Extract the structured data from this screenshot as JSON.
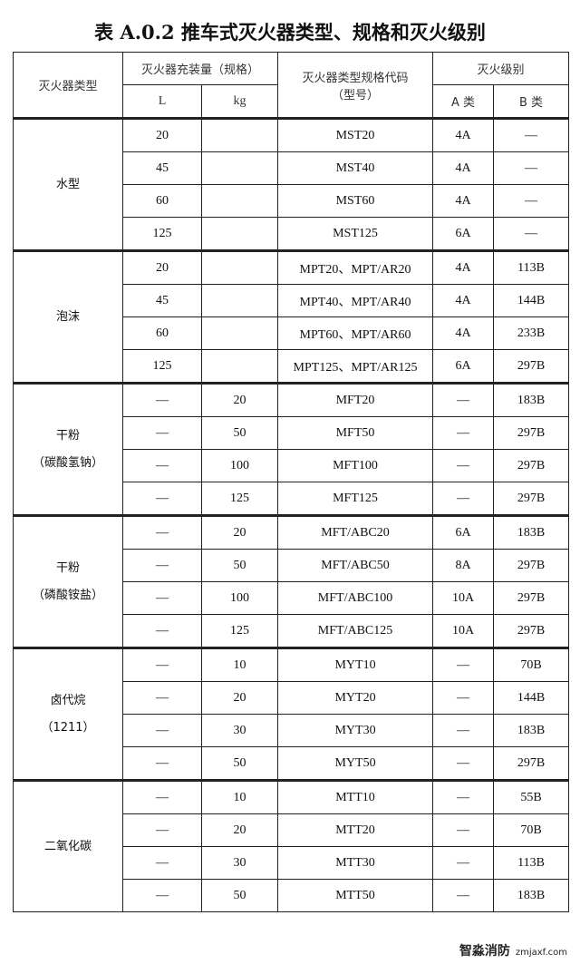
{
  "title": "表 A.0.2  推车式灭火器类型、规格和灭火级别",
  "headers": {
    "type": "灭火器类型",
    "capacity": "灭火器充装量（规格）",
    "L": "L",
    "kg": "kg",
    "code": "灭火器类型规格代码（型号）",
    "rating": "灭火级别",
    "A": "A 类",
    "B": "B 类"
  },
  "groups": [
    {
      "type": [
        "水型"
      ],
      "rows": [
        [
          "20",
          "",
          "MST20",
          "4A",
          "—"
        ],
        [
          "45",
          "",
          "MST40",
          "4A",
          "—"
        ],
        [
          "60",
          "",
          "MST60",
          "4A",
          "—"
        ],
        [
          "125",
          "",
          "MST125",
          "6A",
          "—"
        ]
      ]
    },
    {
      "type": [
        "泡沫"
      ],
      "rows": [
        [
          "20",
          "",
          "MPT20、MPT/AR20",
          "4A",
          "113B"
        ],
        [
          "45",
          "",
          "MPT40、MPT/AR40",
          "4A",
          "144B"
        ],
        [
          "60",
          "",
          "MPT60、MPT/AR60",
          "4A",
          "233B"
        ],
        [
          "125",
          "",
          "MPT125、MPT/AR125",
          "6A",
          "297B"
        ]
      ]
    },
    {
      "type": [
        "干粉",
        "（碳酸氢钠）"
      ],
      "rows": [
        [
          "—",
          "20",
          "MFT20",
          "—",
          "183B"
        ],
        [
          "—",
          "50",
          "MFT50",
          "—",
          "297B"
        ],
        [
          "—",
          "100",
          "MFT100",
          "—",
          "297B"
        ],
        [
          "—",
          "125",
          "MFT125",
          "—",
          "297B"
        ]
      ]
    },
    {
      "type": [
        "干粉",
        "（磷酸铵盐）"
      ],
      "rows": [
        [
          "—",
          "20",
          "MFT/ABC20",
          "6A",
          "183B"
        ],
        [
          "—",
          "50",
          "MFT/ABC50",
          "8A",
          "297B"
        ],
        [
          "—",
          "100",
          "MFT/ABC100",
          "10A",
          "297B"
        ],
        [
          "—",
          "125",
          "MFT/ABC125",
          "10A",
          "297B"
        ]
      ]
    },
    {
      "type": [
        "卤代烷",
        "（1211）"
      ],
      "rows": [
        [
          "—",
          "10",
          "MYT10",
          "—",
          "70B"
        ],
        [
          "—",
          "20",
          "MYT20",
          "—",
          "144B"
        ],
        [
          "—",
          "30",
          "MYT30",
          "—",
          "183B"
        ],
        [
          "—",
          "50",
          "MYT50",
          "—",
          "297B"
        ]
      ]
    },
    {
      "type": [
        "二氧化碳"
      ],
      "rows": [
        [
          "—",
          "10",
          "MTT10",
          "—",
          "55B"
        ],
        [
          "—",
          "20",
          "MTT20",
          "—",
          "70B"
        ],
        [
          "—",
          "30",
          "MTT30",
          "—",
          "113B"
        ],
        [
          "—",
          "50",
          "MTT50",
          "—",
          "183B"
        ]
      ]
    }
  ],
  "watermark": {
    "name": "智淼消防",
    "url": "zmjaxf.com"
  }
}
